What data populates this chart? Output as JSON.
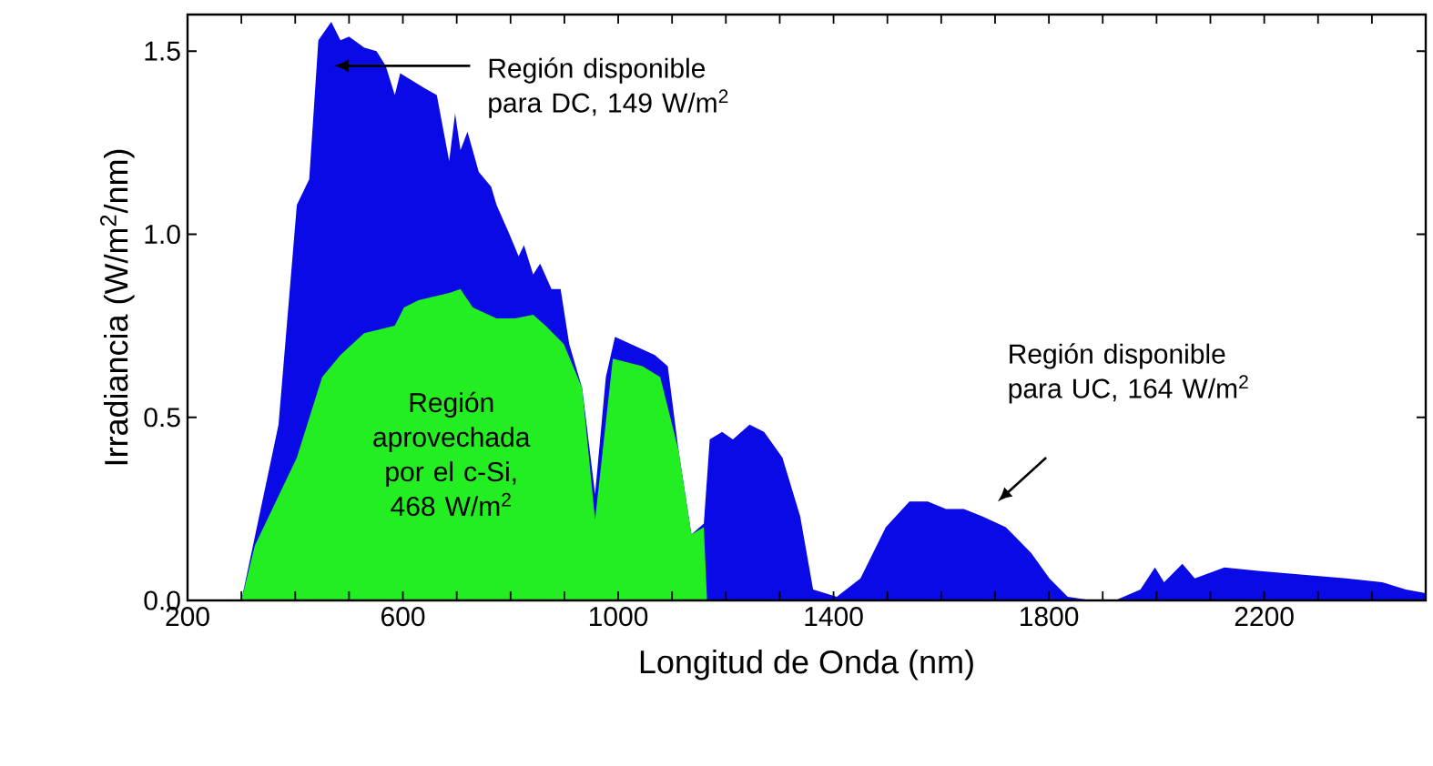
{
  "chart_data": {
    "type": "area",
    "xlabel": "Longitud de Onda (nm)",
    "ylabel": "Irradiancia (W/m$^{2}$/nm)",
    "xlim": [
      200,
      2500
    ],
    "ylim": [
      0,
      1.6
    ],
    "xticks": [
      200,
      {
        "value": 300,
        "label": null
      },
      {
        "value": 400,
        "label": null
      },
      {
        "value": 500,
        "label": null
      },
      600,
      {
        "value": 700,
        "label": null
      },
      {
        "value": 800,
        "label": null
      },
      {
        "value": 900,
        "label": null
      },
      1000,
      {
        "value": 1100,
        "label": null
      },
      {
        "value": 1200,
        "label": null
      },
      {
        "value": 1300,
        "label": null
      },
      1400,
      {
        "value": 1500,
        "label": null
      },
      {
        "value": 1600,
        "label": null
      },
      {
        "value": 1700,
        "label": null
      },
      1800,
      {
        "value": 1900,
        "label": null
      },
      {
        "value": 2000,
        "label": null
      },
      {
        "value": 2100,
        "label": null
      },
      2200,
      {
        "value": 2300,
        "label": null
      },
      {
        "value": 2400,
        "label": null
      }
    ],
    "yticks": [
      {
        "value": 0,
        "label": "0.0"
      },
      {
        "value": 0.5,
        "label": "0.5"
      },
      {
        "value": 1.0,
        "label": "1.0"
      },
      {
        "value": 1.5,
        "label": "1.5"
      }
    ],
    "grid": false,
    "legend": false,
    "series": [
      {
        "color": "#0a0ae6",
        "x": [
          300,
          369,
          403,
          426,
          443,
          467,
          484,
          500,
          528,
          551,
          568,
          585,
          595,
          639,
          663,
          686,
          697,
          707,
          720,
          741,
          764,
          774,
          798,
          815,
          825,
          842,
          855,
          876,
          893,
          909,
          933,
          957,
          977,
          994,
          1068,
          1092,
          1112,
          1136,
          1159,
          1170,
          1193,
          1213,
          1244,
          1271,
          1305,
          1338,
          1362,
          1406,
          1450,
          1497,
          1541,
          1575,
          1609,
          1642,
          1676,
          1720,
          1767,
          1801,
          1835,
          1880,
          1923,
          1970,
          1997,
          2014,
          2048,
          2071,
          2126,
          2193,
          2352,
          2419,
          2463,
          2500
        ],
        "values": [
          0,
          0.48,
          1.08,
          1.15,
          1.53,
          1.58,
          1.53,
          1.54,
          1.51,
          1.5,
          1.46,
          1.38,
          1.44,
          1.4,
          1.38,
          1.2,
          1.33,
          1.23,
          1.28,
          1.17,
          1.13,
          1.08,
          1.0,
          0.94,
          0.97,
          0.89,
          0.92,
          0.85,
          0.85,
          0.7,
          0.58,
          0.29,
          0.61,
          0.72,
          0.67,
          0.64,
          0.41,
          0.18,
          0.21,
          0.44,
          0.46,
          0.44,
          0.48,
          0.46,
          0.39,
          0.23,
          0.03,
          0.01,
          0.06,
          0.2,
          0.27,
          0.27,
          0.25,
          0.25,
          0.23,
          0.2,
          0.13,
          0.06,
          0.01,
          0,
          0,
          0.03,
          0.09,
          0.05,
          0.1,
          0.06,
          0.09,
          0.08,
          0.06,
          0.05,
          0.03,
          0.02
        ]
      },
      {
        "name": "Región aprovechada por el c-Si, 468 W/m$^{2}$",
        "color": "#22ee22",
        "x": [
          300,
          325,
          403,
          450,
          484,
          528,
          585,
          602,
          629,
          686,
          707,
          730,
          774,
          808,
          842,
          865,
          899,
          933,
          957,
          990,
          1045,
          1078,
          1112,
          1136,
          1159,
          1165
        ],
        "values": [
          0,
          0.15,
          0.39,
          0.61,
          0.67,
          0.73,
          0.75,
          0.8,
          0.82,
          0.84,
          0.85,
          0.8,
          0.77,
          0.77,
          0.78,
          0.75,
          0.7,
          0.58,
          0.22,
          0.66,
          0.64,
          0.61,
          0.41,
          0.18,
          0.2,
          0
        ]
      }
    ],
    "annotations": [
      "Región disponible para DC, 149 W/m$^{2}$",
      "Región disponible para UC, 164 W/m$^{2}$"
    ]
  }
}
